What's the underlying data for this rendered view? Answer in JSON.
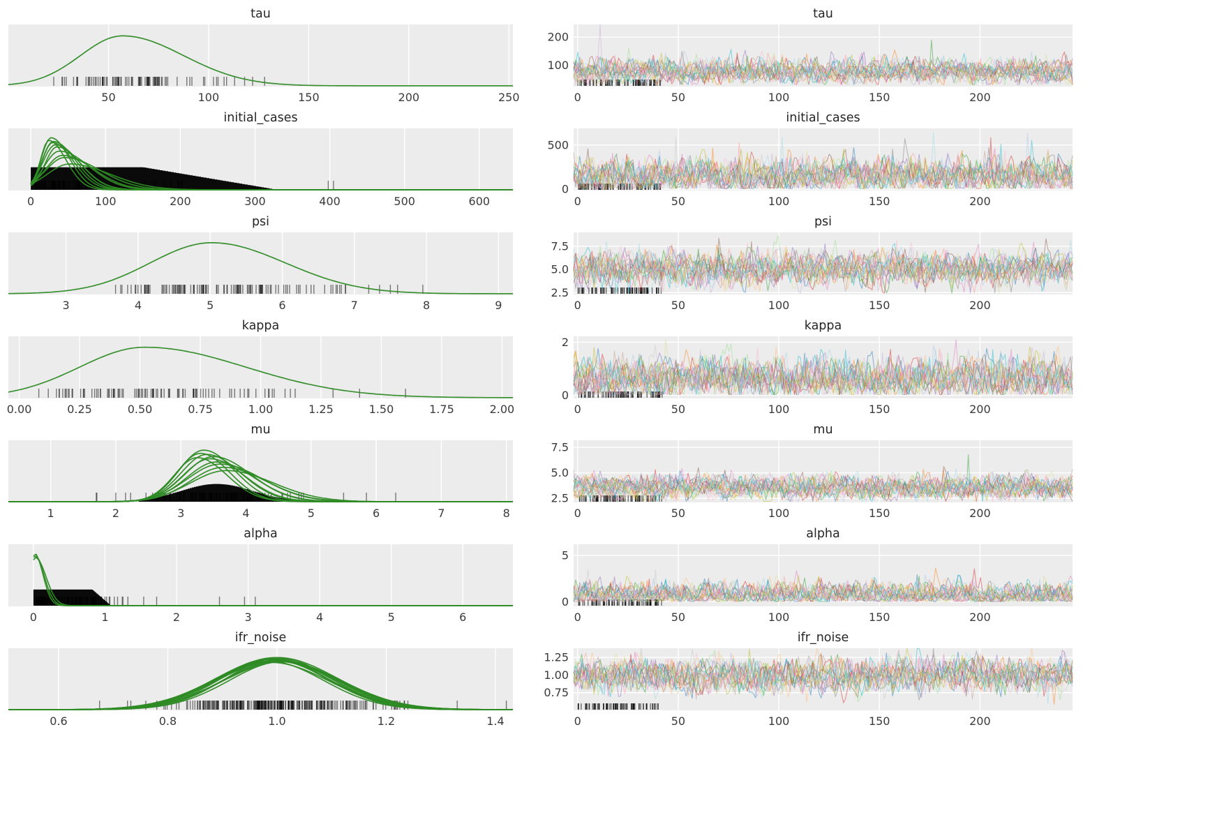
{
  "figure": {
    "background": "#ffffff",
    "panel_bg": "#ececec",
    "grid_color": "#ffffff",
    "text_color": "#3a3a3a",
    "title_color": "#262626",
    "kde_color": "#2e8b25",
    "hist_color": "#0a0a0a",
    "rug_color": "#000000",
    "rug_alpha": 0.5,
    "trace_alpha": 0.5,
    "trace_palette": [
      "#1f77b4",
      "#aec7e8",
      "#ff7f0e",
      "#ffbb78",
      "#2ca02c",
      "#98df8a",
      "#d62728",
      "#ff9896",
      "#9467bd",
      "#c5b0d5",
      "#8c564b",
      "#c49c94",
      "#e377c2",
      "#f7b6d2",
      "#7f7f7f",
      "#c7c7c7",
      "#bcbd22",
      "#dbdb8d",
      "#17becf",
      "#9edae5"
    ]
  },
  "chart_data": [
    {
      "param": "tau",
      "posterior": {
        "type": "kde",
        "xlim": [
          0,
          252
        ],
        "xticks": [
          50,
          100,
          150,
          200,
          250
        ],
        "xtick_labels": [
          "50",
          "100",
          "150",
          "200",
          "250"
        ],
        "curves": [
          {
            "m": 57,
            "s": 21,
            "h": 0.93,
            "skew": 1.45
          }
        ],
        "hist": null,
        "rug": {
          "dist": "normal",
          "mean": 58,
          "sd": 20,
          "min": 21,
          "max": 132,
          "n": 85,
          "outliers": [
            104,
            109,
            113,
            118,
            122,
            128
          ]
        }
      },
      "trace": {
        "type": "line",
        "xlim": [
          -2,
          246
        ],
        "xticks": [
          0,
          50,
          100,
          150,
          200
        ],
        "xtick_labels": [
          "0",
          "50",
          "100",
          "150",
          "200"
        ],
        "ylim": [
          25,
          245
        ],
        "yticks": [
          100,
          200
        ],
        "ytick_labels": [
          "100",
          "200"
        ],
        "n_lines": 20,
        "mean": 78,
        "sd": 18,
        "skew_up": 1.15,
        "clamp_min": 32,
        "spike_p": 0.0014,
        "spike_mag": 5.5,
        "warmup_rug": {
          "n": 75,
          "max": 42
        }
      }
    },
    {
      "param": "initial_cases",
      "posterior": {
        "type": "kde",
        "xlim": [
          -30,
          645
        ],
        "xticks": [
          0,
          100,
          200,
          300,
          400,
          500,
          600
        ],
        "xtick_labels": [
          "0",
          "100",
          "200",
          "300",
          "400",
          "500",
          "600"
        ],
        "clip_min": 0,
        "curves": [
          {
            "m": 27,
            "s": 13,
            "h": 0.97,
            "skew": 1.9
          },
          {
            "m": 33,
            "s": 17,
            "h": 0.84,
            "skew": 1.9
          },
          {
            "m": 30,
            "s": 15,
            "h": 0.9,
            "skew": 2.0
          },
          {
            "m": 45,
            "s": 25,
            "h": 0.6,
            "skew": 1.9
          },
          {
            "m": 38,
            "s": 20,
            "h": 0.72,
            "skew": 2.0
          },
          {
            "m": 24,
            "s": 11,
            "h": 0.92,
            "skew": 2.1
          },
          {
            "m": 52,
            "s": 30,
            "h": 0.48,
            "skew": 1.8
          },
          {
            "m": 35,
            "s": 16,
            "h": 0.8,
            "skew": 2.0
          },
          {
            "m": 42,
            "s": 22,
            "h": 0.64,
            "skew": 1.9
          },
          {
            "m": 29,
            "s": 14,
            "h": 0.88,
            "skew": 2.0
          }
        ],
        "hist": {
          "shape": "plateau",
          "start": 0,
          "plateau_end": 150,
          "end": 330,
          "peak": 0.42
        },
        "rug": {
          "dist": "halfnormal",
          "mean": 0,
          "sd": 95,
          "min": 3,
          "max": 335,
          "n": 120,
          "outliers": [
            398,
            405
          ]
        }
      },
      "trace": {
        "type": "line",
        "xlim": [
          -2,
          246
        ],
        "xticks": [
          0,
          50,
          100,
          150,
          200
        ],
        "xtick_labels": [
          "0",
          "50",
          "100",
          "150",
          "200"
        ],
        "ylim": [
          -15,
          690
        ],
        "yticks": [
          0,
          500
        ],
        "ytick_labels": [
          "0",
          "500"
        ],
        "n_lines": 20,
        "mean": 140,
        "sd": 70,
        "skew_up": 1.3,
        "clamp_min": 8,
        "spike_p": 0.0015,
        "spike_mag": 4.5,
        "warmup_rug": {
          "n": 75,
          "max": 42
        }
      }
    },
    {
      "param": "psi",
      "posterior": {
        "type": "kde",
        "xlim": [
          2.2,
          9.2
        ],
        "xticks": [
          3,
          4,
          5,
          6,
          7,
          8,
          9
        ],
        "xtick_labels": [
          "3",
          "4",
          "5",
          "6",
          "7",
          "8",
          "9"
        ],
        "curves": [
          {
            "m": 5.02,
            "s": 0.85,
            "h": 0.95,
            "skew": 1.2
          }
        ],
        "hist": null,
        "rug": {
          "dist": "normal",
          "mean": 5.1,
          "sd": 0.85,
          "min": 3.35,
          "max": 7.05,
          "n": 115,
          "outliers": [
            7.2,
            7.35,
            7.5,
            7.6,
            7.95
          ]
        }
      },
      "trace": {
        "type": "line",
        "xlim": [
          -2,
          246
        ],
        "xticks": [
          0,
          50,
          100,
          150,
          200
        ],
        "xtick_labels": [
          "0",
          "50",
          "100",
          "150",
          "200"
        ],
        "ylim": [
          2.3,
          9.0
        ],
        "yticks": [
          2.5,
          5.0,
          7.5
        ],
        "ytick_labels": [
          "2.5",
          "5.0",
          "7.5"
        ],
        "n_lines": 20,
        "mean": 5.1,
        "sd": 0.8,
        "skew_up": 1.0,
        "clamp_min": 2.45,
        "spike_p": 0.0015,
        "spike_mag": 2.2,
        "warmup_rug": {
          "n": 75,
          "max": 42
        }
      }
    },
    {
      "param": "kappa",
      "posterior": {
        "type": "kde",
        "xlim": [
          -0.045,
          2.045
        ],
        "xticks": [
          0.0,
          0.25,
          0.5,
          0.75,
          1.0,
          1.25,
          1.5,
          1.75,
          2.0
        ],
        "xtick_labels": [
          "0.00",
          "0.25",
          "0.50",
          "0.75",
          "1.00",
          "1.25",
          "1.50",
          "1.75",
          "2.00"
        ],
        "curves": [
          {
            "m": 0.52,
            "s": 0.27,
            "h": 0.94,
            "skew": 1.55
          }
        ],
        "hist": null,
        "rug": {
          "dist": "normal",
          "mean": 0.55,
          "sd": 0.26,
          "min": 0.05,
          "max": 1.22,
          "n": 95,
          "outliers": [
            1.3,
            1.41,
            1.6
          ]
        }
      },
      "trace": {
        "type": "line",
        "xlim": [
          -2,
          246
        ],
        "xticks": [
          0,
          50,
          100,
          150,
          200
        ],
        "xtick_labels": [
          "0",
          "50",
          "100",
          "150",
          "200"
        ],
        "ylim": [
          -0.12,
          2.22
        ],
        "yticks": [
          0,
          2
        ],
        "ytick_labels": [
          "0",
          "2"
        ],
        "n_lines": 20,
        "mean": 0.62,
        "sd": 0.3,
        "skew_up": 1.2,
        "clamp_min": 0.03,
        "spike_p": 0.002,
        "spike_mag": 2.5,
        "warmup_rug": {
          "n": 75,
          "max": 42
        }
      }
    },
    {
      "param": "mu",
      "posterior": {
        "type": "kde",
        "xlim": [
          0.35,
          8.1
        ],
        "xticks": [
          1,
          2,
          3,
          4,
          5,
          6,
          7,
          8
        ],
        "xtick_labels": [
          "1",
          "2",
          "3",
          "4",
          "5",
          "6",
          "7",
          "8"
        ],
        "curves": [
          {
            "m": 3.35,
            "s": 0.38,
            "h": 0.96,
            "skew": 1.25
          },
          {
            "m": 3.5,
            "s": 0.44,
            "h": 0.84,
            "skew": 1.3
          },
          {
            "m": 3.3,
            "s": 0.36,
            "h": 0.9,
            "skew": 1.25
          },
          {
            "m": 3.6,
            "s": 0.5,
            "h": 0.7,
            "skew": 1.3
          },
          {
            "m": 3.45,
            "s": 0.42,
            "h": 0.8,
            "skew": 1.25
          },
          {
            "m": 3.7,
            "s": 0.55,
            "h": 0.58,
            "skew": 1.3
          },
          {
            "m": 3.4,
            "s": 0.4,
            "h": 0.88,
            "skew": 1.3
          },
          {
            "m": 3.55,
            "s": 0.46,
            "h": 0.74,
            "skew": 1.25
          },
          {
            "m": 3.25,
            "s": 0.35,
            "h": 0.82,
            "skew": 1.3
          },
          {
            "m": 3.65,
            "s": 0.5,
            "h": 0.64,
            "skew": 1.3
          }
        ],
        "hist": {
          "shape": "bell",
          "mean": 3.55,
          "sd": 0.55,
          "range": [
            2.35,
            5.3
          ],
          "peak": 0.33
        },
        "rug": {
          "dist": "normal",
          "mean": 3.6,
          "sd": 0.65,
          "min": 1.65,
          "max": 5.15,
          "n": 100,
          "outliers": [
            5.5,
            5.85,
            6.3,
            1.7,
            2.0
          ]
        }
      },
      "trace": {
        "type": "line",
        "xlim": [
          -2,
          246
        ],
        "xticks": [
          0,
          50,
          100,
          150,
          200
        ],
        "xtick_labels": [
          "0",
          "50",
          "100",
          "150",
          "200"
        ],
        "ylim": [
          2.1,
          8.2
        ],
        "yticks": [
          2.5,
          5.0,
          7.5
        ],
        "ytick_labels": [
          "2.5",
          "5.0",
          "7.5"
        ],
        "n_lines": 20,
        "mean": 3.55,
        "sd": 0.5,
        "skew_up": 1.1,
        "clamp_min": 2.2,
        "spike_p": 0.0007,
        "spike_mag": 6.0,
        "warmup_rug": {
          "n": 75,
          "max": 42
        }
      }
    },
    {
      "param": "alpha",
      "posterior": {
        "type": "kde",
        "xlim": [
          -0.35,
          6.7
        ],
        "xticks": [
          0,
          1,
          2,
          3,
          4,
          5,
          6
        ],
        "xtick_labels": [
          "0",
          "1",
          "2",
          "3",
          "4",
          "5",
          "6"
        ],
        "clip_min": 0,
        "curves": [
          {
            "m": 0.02,
            "s": 0.07,
            "h": 0.97,
            "skew": 1.6
          },
          {
            "m": 0.03,
            "s": 0.09,
            "h": 0.9,
            "skew": 1.6
          },
          {
            "m": 0.02,
            "s": 0.08,
            "h": 0.93,
            "skew": 1.6
          }
        ],
        "hist": {
          "shape": "plateau",
          "start": 0,
          "plateau_end": 0.82,
          "end": 1.08,
          "peak": 0.3
        },
        "rug": {
          "dist": "halfnormal",
          "mean": 0,
          "sd": 0.6,
          "min": 0.02,
          "max": 2.3,
          "n": 115,
          "outliers": [
            2.6,
            2.95,
            3.1
          ]
        }
      },
      "trace": {
        "type": "line",
        "xlim": [
          -2,
          246
        ],
        "xticks": [
          0,
          50,
          100,
          150,
          200
        ],
        "xtick_labels": [
          "0",
          "50",
          "100",
          "150",
          "200"
        ],
        "ylim": [
          -0.5,
          6.2
        ],
        "yticks": [
          0,
          5
        ],
        "ytick_labels": [
          "0",
          "5"
        ],
        "n_lines": 20,
        "mean": 0.7,
        "sd": 0.42,
        "skew_up": 1.5,
        "clamp_min": 0.03,
        "spike_p": 0.002,
        "spike_mag": 5.5,
        "warmup_rug": {
          "n": 75,
          "max": 42
        }
      }
    },
    {
      "param": "ifr_noise",
      "posterior": {
        "type": "kde",
        "xlim": [
          0.508,
          1.432
        ],
        "xticks": [
          0.6,
          0.8,
          1.0,
          1.2,
          1.4
        ],
        "xtick_labels": [
          "0.6",
          "0.8",
          "1.0",
          "1.2",
          "1.4"
        ],
        "curves": [
          {
            "m": 0.985,
            "s": 0.1,
            "h": 0.9,
            "skew": 1.0
          },
          {
            "m": 0.99,
            "s": 0.105,
            "h": 0.93,
            "skew": 1.0
          },
          {
            "m": 0.995,
            "s": 0.098,
            "h": 0.95,
            "skew": 1.0
          },
          {
            "m": 1.0,
            "s": 0.11,
            "h": 0.97,
            "skew": 1.0
          },
          {
            "m": 1.005,
            "s": 0.102,
            "h": 0.92,
            "skew": 1.0
          },
          {
            "m": 1.01,
            "s": 0.108,
            "h": 0.89,
            "skew": 1.0
          },
          {
            "m": 0.992,
            "s": 0.1,
            "h": 0.94,
            "skew": 1.0
          },
          {
            "m": 0.998,
            "s": 0.112,
            "h": 0.9,
            "skew": 1.0
          },
          {
            "m": 1.003,
            "s": 0.096,
            "h": 0.96,
            "skew": 1.0
          },
          {
            "m": 1.008,
            "s": 0.104,
            "h": 0.91,
            "skew": 1.0
          },
          {
            "m": 0.988,
            "s": 0.107,
            "h": 0.88,
            "skew": 1.0
          },
          {
            "m": 1.012,
            "s": 0.099,
            "h": 0.9,
            "skew": 1.0
          },
          {
            "m": 0.996,
            "s": 0.103,
            "h": 0.95,
            "skew": 1.0
          },
          {
            "m": 1.002,
            "s": 0.109,
            "h": 0.92,
            "skew": 1.0
          }
        ],
        "hist": null,
        "rug": {
          "dist": "normal",
          "mean": 1.0,
          "sd": 0.105,
          "min": 0.7,
          "max": 1.3,
          "n": 260,
          "outliers": [
            0.675,
            1.33,
            1.42
          ]
        }
      },
      "trace": {
        "type": "line",
        "xlim": [
          -2,
          246
        ],
        "xticks": [
          0,
          50,
          100,
          150,
          200
        ],
        "xtick_labels": [
          "0",
          "50",
          "100",
          "150",
          "200"
        ],
        "ylim": [
          0.5,
          1.38
        ],
        "yticks": [
          0.75,
          1.0,
          1.25
        ],
        "ytick_labels": [
          "0.75",
          "1.00",
          "1.25"
        ],
        "n_lines": 20,
        "mean": 0.995,
        "sd": 0.105,
        "skew_up": 1.0,
        "clamp_min": 0.55,
        "spike_p": 0.001,
        "spike_mag": 1.8,
        "warmup_rug": {
          "n": 75,
          "max": 42
        }
      }
    }
  ]
}
